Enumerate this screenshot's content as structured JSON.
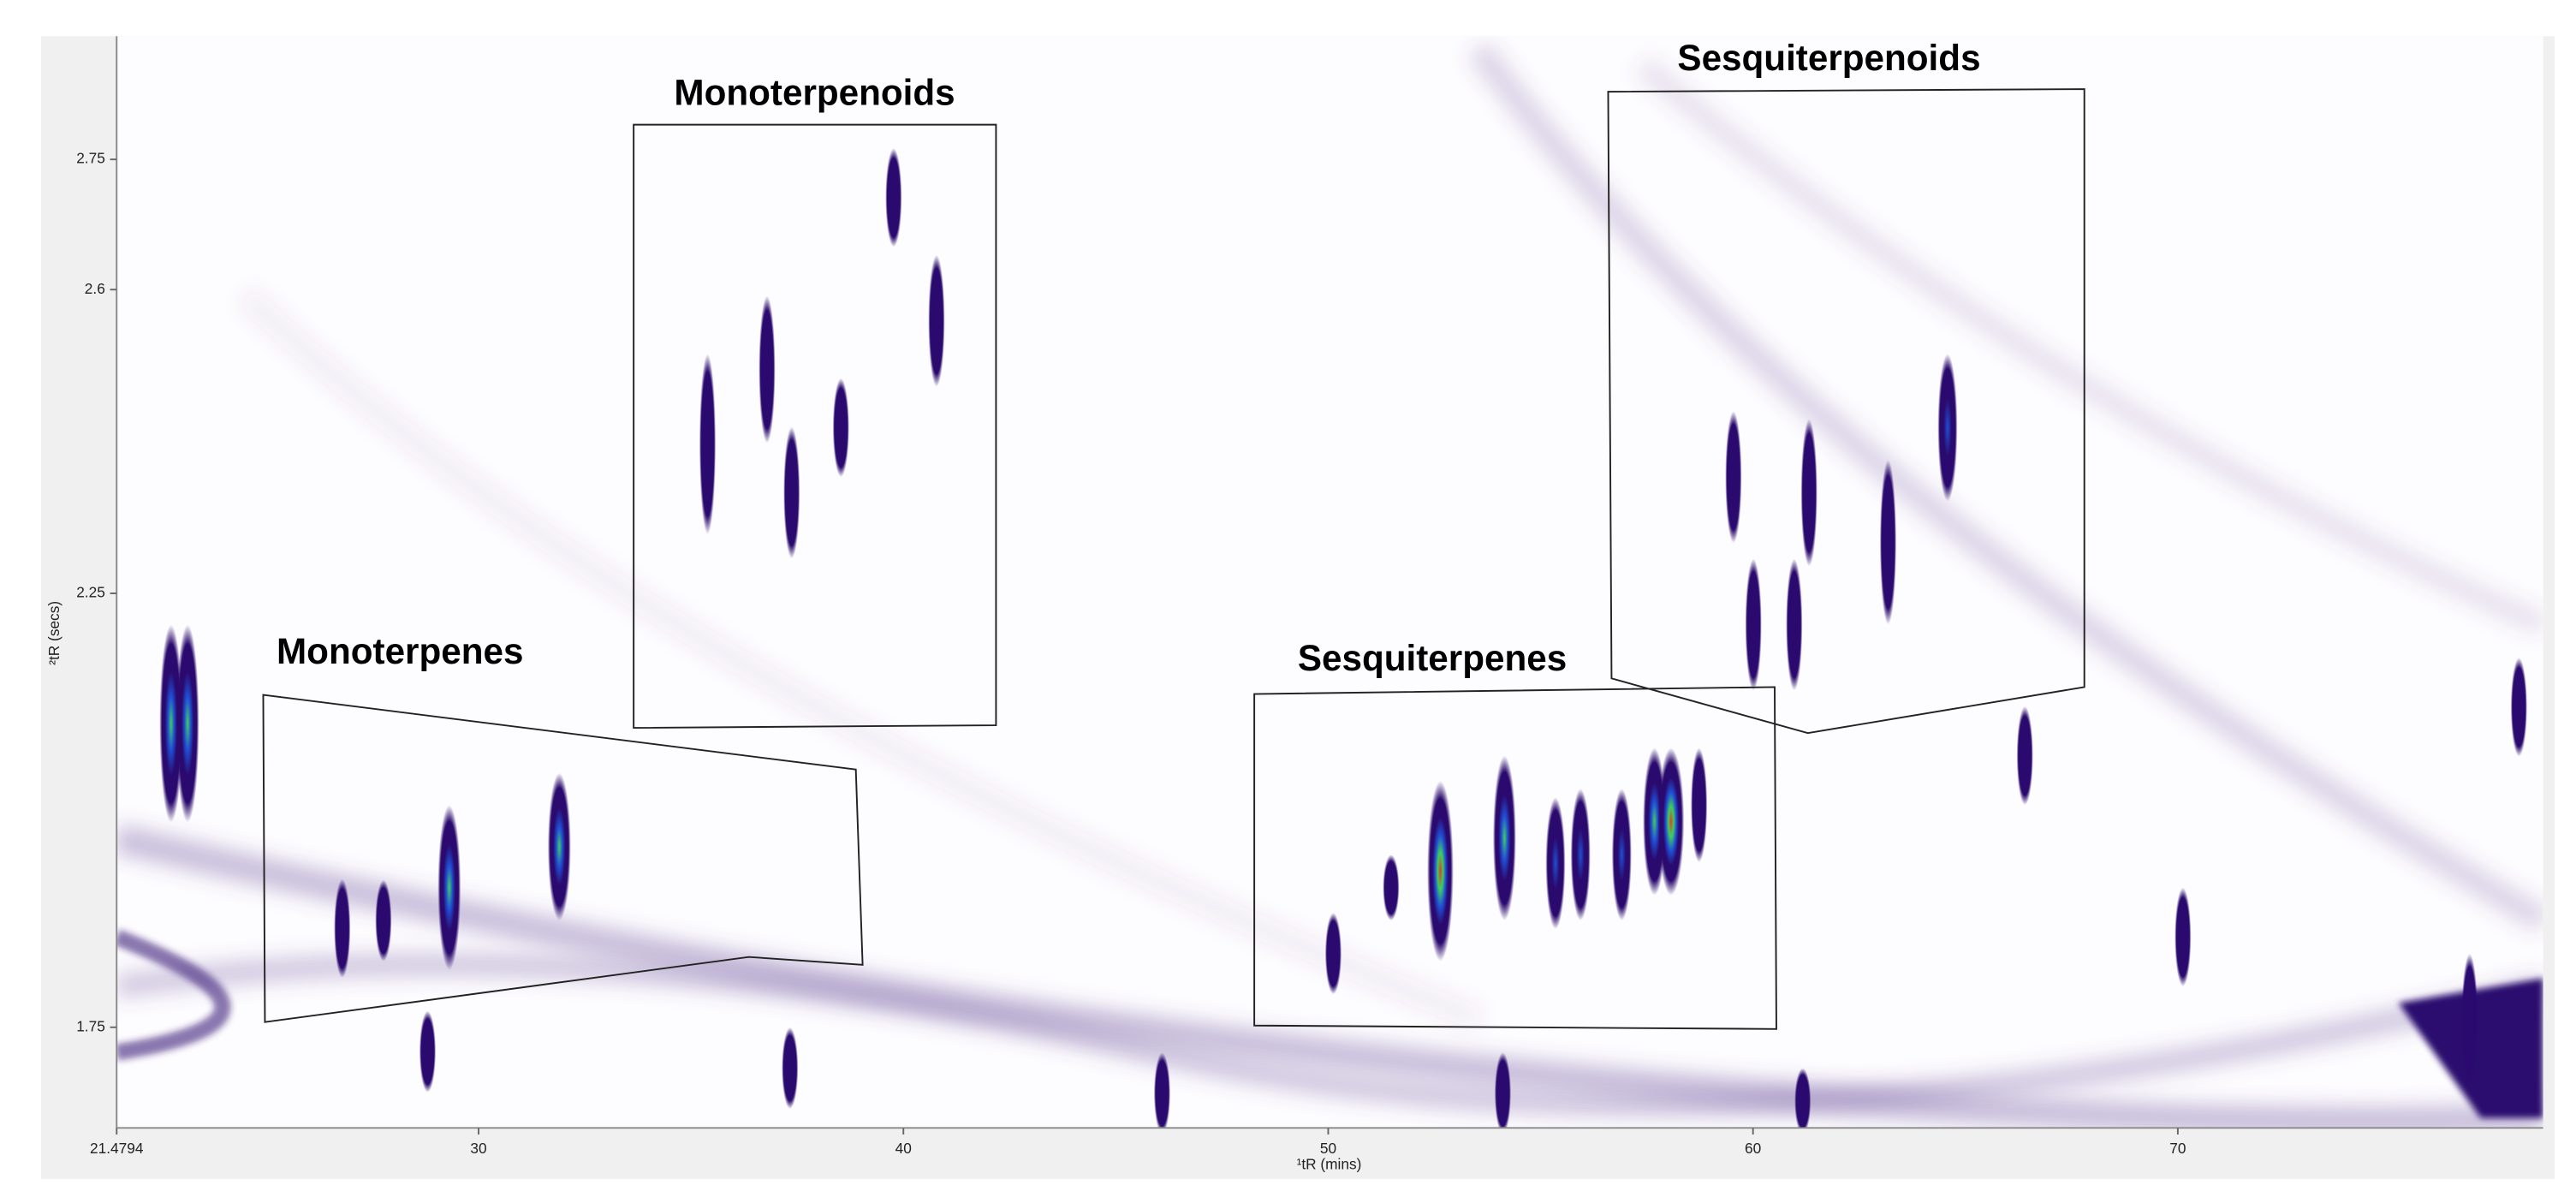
{
  "chart_data": {
    "type": "contour",
    "xlabel": "¹tR (mins)",
    "ylabel": "²tR (secs)",
    "xlim": [
      21.4794,
      78.6
    ],
    "ylim": [
      1.634,
      2.892
    ],
    "xticks": [
      {
        "value": 21.4794,
        "label": "21.4794"
      },
      30,
      40,
      50,
      60,
      70
    ],
    "yticks": [
      1.75,
      2.25,
      2.6,
      2.75
    ],
    "colorscale": [
      "#2a0a6e",
      "#1f4fd6",
      "#3fcf5a",
      "#e0402a"
    ],
    "regions": [
      {
        "label": "Monoterpenes",
        "label_x": 28.15,
        "label_y": 2.18,
        "x": [
          24.93,
          38.88,
          39.04,
          36.36,
          24.97
        ],
        "y": [
          2.133,
          2.047,
          1.822,
          1.831,
          1.756
        ]
      },
      {
        "label": "Monoterpenoids",
        "label_x": 37.91,
        "label_y": 2.824,
        "x": [
          33.65,
          42.18,
          42.18,
          33.65
        ],
        "y": [
          2.79,
          2.79,
          2.098,
          2.095
        ]
      },
      {
        "label": "Sesquiterpenes",
        "label_x": 52.45,
        "label_y": 2.172,
        "x": [
          48.26,
          60.51,
          60.55,
          48.26
        ],
        "y": [
          2.134,
          2.142,
          1.748,
          1.752
        ]
      },
      {
        "label": "Sesquiterpenoids",
        "label_x": 61.79,
        "label_y": 2.864,
        "x": [
          56.59,
          67.8,
          67.8,
          61.29,
          56.67
        ],
        "y": [
          2.828,
          2.831,
          2.142,
          2.089,
          2.152
        ]
      }
    ],
    "peaks": {
      "x": [
        22.76,
        23.15,
        26.79,
        27.76,
        29.31,
        31.9,
        28.8,
        35.39,
        36.79,
        37.37,
        38.53,
        39.77,
        40.78,
        37.33,
        46.09,
        52.64,
        54.15,
        55.35,
        55.94,
        56.91,
        57.68,
        58.07,
        58.73,
        50.12,
        51.48,
        59.54,
        60.01,
        60.97,
        61.32,
        63.18,
        64.58,
        66.4,
        70.12,
        54.11,
        61.17,
        76.87,
        78.03
      ],
      "y": [
        2.1,
        2.1,
        1.864,
        1.873,
        1.911,
        1.958,
        1.722,
        2.422,
        2.508,
        2.366,
        2.441,
        2.706,
        2.564,
        1.703,
        1.674,
        1.93,
        1.968,
        1.939,
        1.949,
        1.949,
        1.987,
        1.987,
        2.006,
        1.835,
        1.911,
        2.384,
        2.214,
        2.214,
        2.366,
        2.309,
        2.441,
        2.063,
        1.854,
        1.674,
        1.665,
        1.759,
        2.119
      ],
      "half_height": [
        0.114,
        0.114,
        0.057,
        0.047,
        0.095,
        0.085,
        0.047,
        0.104,
        0.085,
        0.076,
        0.057,
        0.057,
        0.076,
        0.047,
        0.047,
        0.104,
        0.095,
        0.076,
        0.076,
        0.076,
        0.085,
        0.085,
        0.066,
        0.047,
        0.038,
        0.076,
        0.076,
        0.076,
        0.085,
        0.095,
        0.085,
        0.057,
        0.057,
        0.047,
        0.038,
        0.076,
        0.057
      ],
      "intensity": [
        2,
        2,
        0,
        0,
        2,
        2,
        0,
        0,
        0,
        0,
        0,
        0,
        0,
        0,
        0,
        3,
        2,
        1,
        1,
        1,
        2,
        3,
        0,
        0,
        0,
        0,
        0,
        0,
        0,
        0,
        1,
        0,
        0,
        0,
        0,
        0,
        0
      ]
    }
  }
}
